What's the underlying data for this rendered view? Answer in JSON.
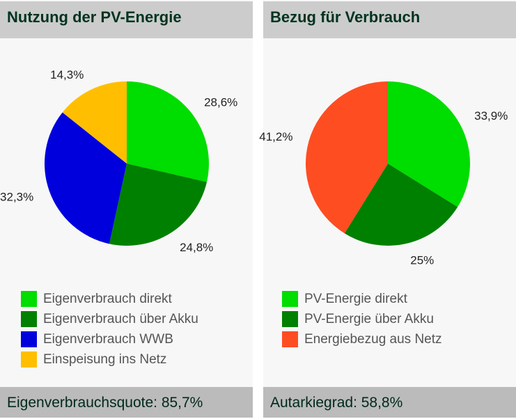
{
  "chart_data": [
    {
      "type": "pie",
      "title": "Nutzung der PV-Energie",
      "legend_placement": "bottom",
      "slices": [
        {
          "name": "Eigenverbrauch direkt",
          "value": 28.6,
          "label": "28,6%",
          "color": "#00dd00"
        },
        {
          "name": "Eigenverbrauch über Akku",
          "value": 24.8,
          "label": "24,8%",
          "color": "#008000"
        },
        {
          "name": "Eigenverbrauch WWB",
          "value": 32.3,
          "label": "32,3%",
          "color": "#0000dd"
        },
        {
          "name": "Einspeisung ins Netz",
          "value": 14.3,
          "label": "14,3%",
          "color": "#ffbf00"
        }
      ],
      "footer": "Eigenverbrauchsquote: 85,7%"
    },
    {
      "type": "pie",
      "title": "Bezug für Verbrauch",
      "legend_placement": "bottom",
      "slices": [
        {
          "name": "PV-Energie direkt",
          "value": 33.9,
          "label": "33,9%",
          "color": "#00dd00"
        },
        {
          "name": "PV-Energie über Akku",
          "value": 25,
          "label": "25%",
          "color": "#008000"
        },
        {
          "name": "Energiebezug aus Netz",
          "value": 41.2,
          "label": "41,2%",
          "color": "#ff4d22"
        }
      ],
      "footer": "Autarkiegrad: 58,8%"
    }
  ]
}
